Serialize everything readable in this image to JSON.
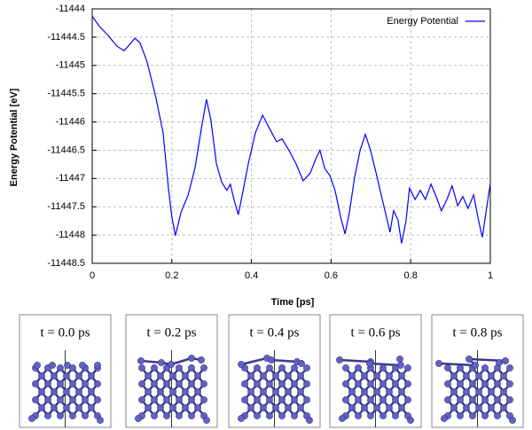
{
  "chart_data": {
    "type": "line",
    "xlabel": "Time [ps]",
    "ylabel": "Energy Potential [eV]",
    "x": [
      0,
      0.018,
      0.04,
      0.062,
      0.08,
      0.098,
      0.107,
      0.12,
      0.138,
      0.16,
      0.178,
      0.192,
      0.2,
      0.209,
      0.223,
      0.241,
      0.258,
      0.276,
      0.287,
      0.298,
      0.312,
      0.325,
      0.338,
      0.347,
      0.356,
      0.367,
      0.379,
      0.392,
      0.41,
      0.428,
      0.445,
      0.463,
      0.477,
      0.494,
      0.512,
      0.53,
      0.548,
      0.561,
      0.572,
      0.584,
      0.597,
      0.61,
      0.624,
      0.635,
      0.646,
      0.659,
      0.673,
      0.686,
      0.699,
      0.713,
      0.726,
      0.739,
      0.748,
      0.757,
      0.768,
      0.777,
      0.788,
      0.797,
      0.811,
      0.824,
      0.837,
      0.851,
      0.864,
      0.877,
      0.891,
      0.904,
      0.918,
      0.931,
      0.944,
      0.958,
      0.971,
      0.98,
      0.989,
      1.0
    ],
    "series": [
      {
        "name": "Energy Potential",
        "color": "#0000ff",
        "values": [
          -11444.13,
          -11444.31,
          -11444.47,
          -11444.66,
          -11444.74,
          -11444.6,
          -11444.52,
          -11444.6,
          -11444.94,
          -11445.57,
          -11446.19,
          -11447.21,
          -11447.68,
          -11448.01,
          -11447.6,
          -11447.29,
          -11446.82,
          -11446.04,
          -11445.6,
          -11445.96,
          -11446.74,
          -11447.06,
          -11447.21,
          -11447.1,
          -11447.37,
          -11447.64,
          -11447.21,
          -11446.74,
          -11446.19,
          -11445.88,
          -11446.11,
          -11446.35,
          -11446.3,
          -11446.5,
          -11446.74,
          -11447.04,
          -11446.9,
          -11446.66,
          -11446.5,
          -11446.82,
          -11446.95,
          -11447.21,
          -11447.68,
          -11447.98,
          -11447.6,
          -11446.98,
          -11446.5,
          -11446.22,
          -11446.5,
          -11446.9,
          -11447.29,
          -11447.68,
          -11447.95,
          -11447.57,
          -11447.73,
          -11448.15,
          -11447.76,
          -11447.17,
          -11447.37,
          -11447.21,
          -11447.37,
          -11447.1,
          -11447.32,
          -11447.57,
          -11447.37,
          -11447.13,
          -11447.48,
          -11447.32,
          -11447.53,
          -11447.29,
          -11447.76,
          -11448.04,
          -11447.6,
          -11447.09
        ]
      }
    ],
    "xlim": [
      0,
      1
    ],
    "xticks": [
      0,
      0.2,
      0.4,
      0.6,
      0.8,
      1
    ],
    "ylim": [
      -11448.5,
      -11444
    ],
    "yticks": [
      -11448.5,
      -11448,
      -11447.5,
      -11447,
      -11446.5,
      -11446,
      -11445.5,
      -11445,
      -11444.5,
      -11444
    ],
    "grid": true,
    "legend": "upper right"
  },
  "snapshots": [
    {
      "label": "t = 0.0 ps"
    },
    {
      "label": "t = 0.2 ps"
    },
    {
      "label": "t = 0.4 ps"
    },
    {
      "label": "t = 0.6 ps"
    },
    {
      "label": "t = 0.8 ps"
    }
  ]
}
